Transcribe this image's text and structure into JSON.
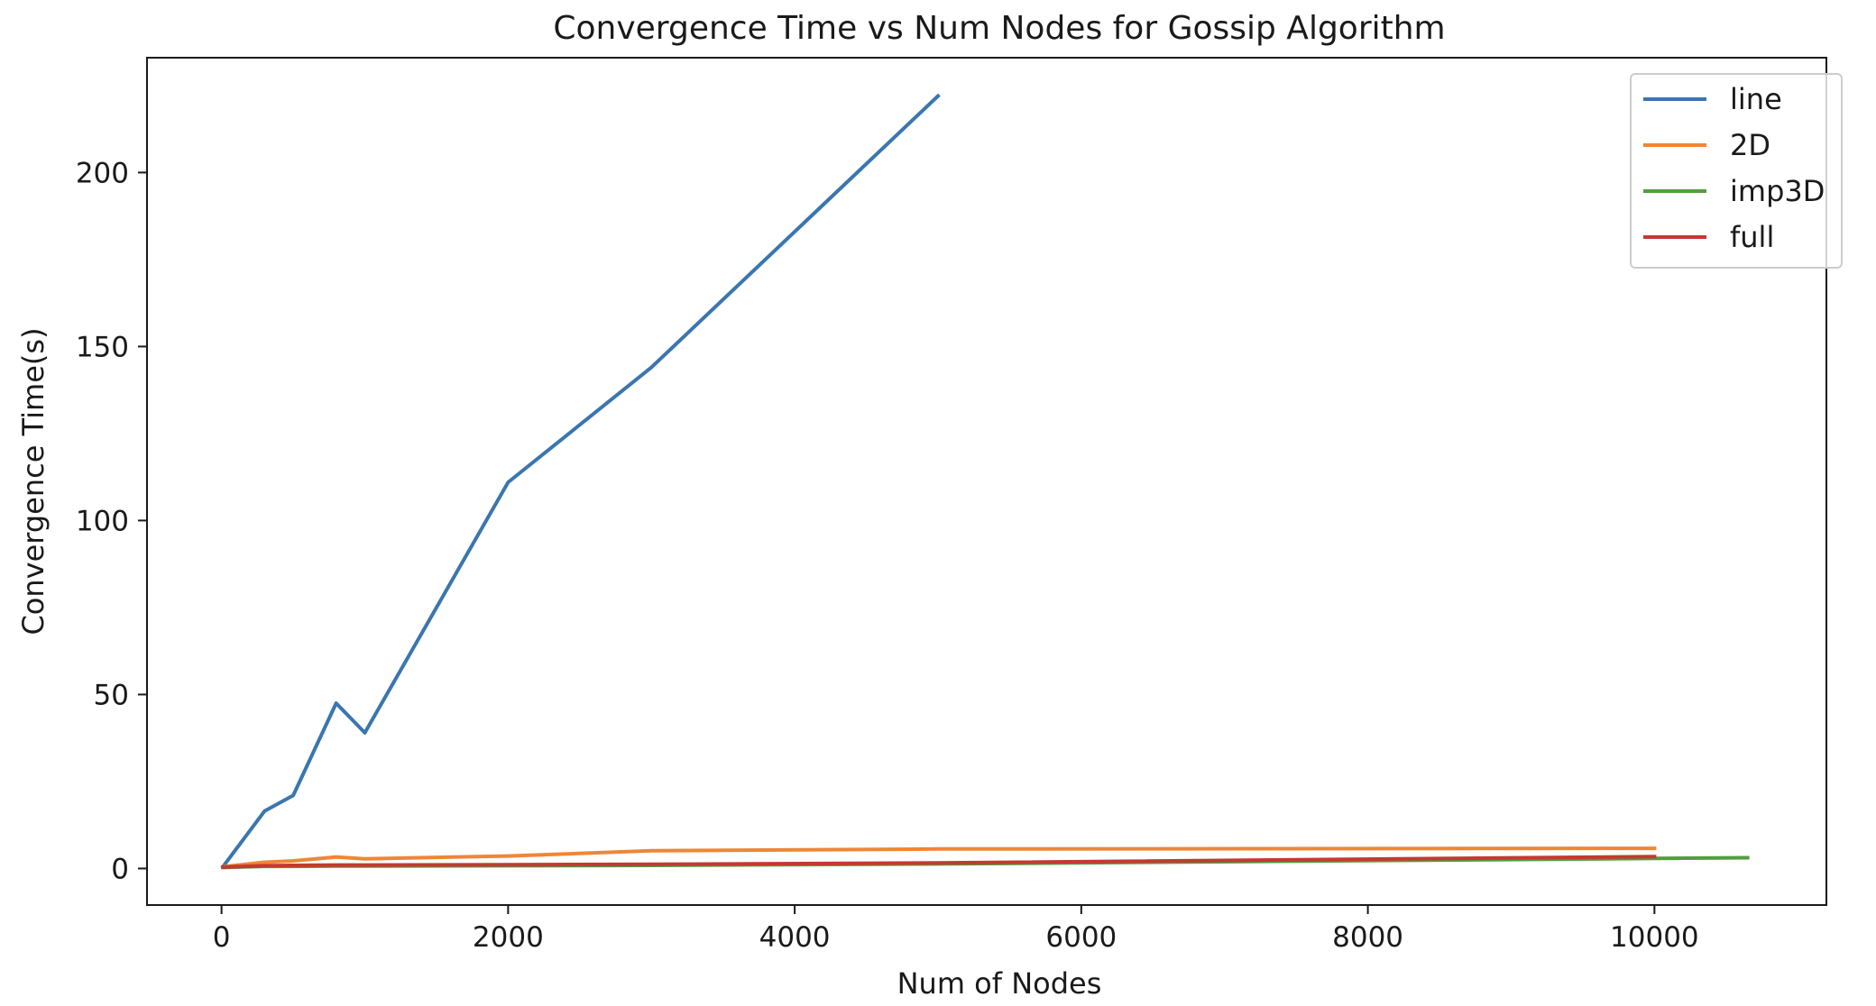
{
  "chart_data": {
    "type": "line",
    "title": "Convergence Time vs Num Nodes for Gossip Algorithm",
    "xlabel": "Num of Nodes",
    "ylabel": "Convergence Time(s)",
    "xlim": [
      -520,
      11200
    ],
    "ylim": [
      -10.5,
      233
    ],
    "xticks": [
      0,
      2000,
      4000,
      6000,
      8000,
      10000
    ],
    "yticks": [
      0,
      50,
      100,
      150,
      200
    ],
    "grid": false,
    "legend_position": "top-right",
    "series": [
      {
        "name": "line",
        "color": "#3a76af",
        "x": [
          10,
          300,
          500,
          800,
          1000,
          2000,
          3000,
          5000
        ],
        "y": [
          0.5,
          16.5,
          21,
          47.5,
          39,
          111,
          144,
          222
        ]
      },
      {
        "name": "2D",
        "color": "#ef8636",
        "x": [
          10,
          300,
          500,
          800,
          1000,
          2000,
          3000,
          5000,
          10000
        ],
        "y": [
          0.5,
          1.8,
          2.2,
          3.3,
          2.8,
          3.6,
          5.1,
          5.6,
          5.8
        ]
      },
      {
        "name": "imp3D",
        "color": "#519e3e",
        "x": [
          10,
          300,
          500,
          800,
          1000,
          2000,
          3000,
          5000,
          10000,
          10650
        ],
        "y": [
          0.3,
          0.6,
          0.6,
          0.7,
          0.7,
          0.8,
          0.9,
          1.3,
          2.9,
          3.1
        ]
      },
      {
        "name": "full",
        "color": "#c53932",
        "x": [
          10,
          300,
          500,
          800,
          1000,
          2000,
          3000,
          5000,
          10000
        ],
        "y": [
          0.4,
          0.8,
          0.9,
          1.0,
          1.0,
          1.1,
          1.2,
          1.6,
          3.4
        ]
      }
    ]
  }
}
